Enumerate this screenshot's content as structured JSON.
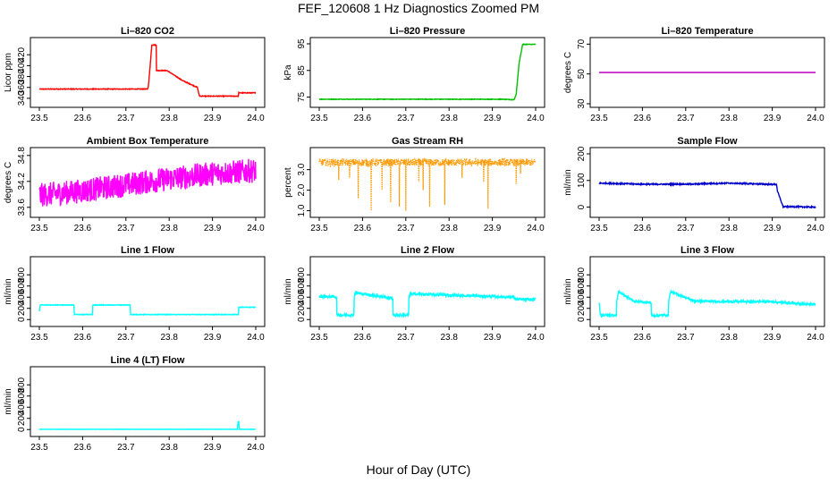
{
  "figure": {
    "title": "FEF_120608  1 Hz Diagnostics Zoomed PM",
    "xlabel": "Hour of Day (UTC)"
  },
  "chart_data": [
    {
      "type": "line",
      "title": "Li–820 CO2",
      "ylabel": "Licor ppm",
      "color": "#ff0000",
      "xlim": [
        23.5,
        24.0
      ],
      "ylim": [
        330,
        445
      ],
      "x_ticks": [
        "23.5",
        "23.6",
        "23.7",
        "23.8",
        "23.9",
        "24.0"
      ],
      "y_ticks": [
        {
          "v": 340,
          "t": "340"
        },
        {
          "v": 360,
          "t": "360"
        },
        {
          "v": 380,
          "t": "380"
        },
        {
          "v": 400,
          "t": "400"
        },
        {
          "v": 420,
          "t": "420"
        }
      ],
      "x": [
        23.5,
        23.75,
        23.752,
        23.76,
        23.77,
        23.77,
        23.795,
        23.795,
        23.83,
        23.83,
        23.865,
        23.87,
        23.96,
        23.96,
        24.0
      ],
      "y": [
        357,
        357,
        362,
        438,
        438,
        391,
        391,
        391,
        373,
        373,
        360,
        344,
        344,
        350,
        350
      ],
      "noise": 0.6
    },
    {
      "type": "line",
      "title": "Li–820 Pressure",
      "ylabel": "kPa",
      "color": "#00c000",
      "xlim": [
        23.5,
        24.0
      ],
      "ylim": [
        72.5,
        96
      ],
      "x_ticks": [
        "23.5",
        "23.6",
        "23.7",
        "23.8",
        "23.9",
        "24.0"
      ],
      "y_ticks": [
        {
          "v": 75,
          "t": "75"
        },
        {
          "v": 85,
          "t": "85"
        },
        {
          "v": 95,
          "t": "95"
        }
      ],
      "x": [
        23.5,
        23.92,
        23.95,
        23.955,
        23.962,
        23.97,
        24.0
      ],
      "y": [
        74.2,
        74.2,
        74.0,
        76,
        88,
        94.8,
        94.8
      ],
      "noise": 0.1
    },
    {
      "type": "line",
      "title": "Li–820 Temperature",
      "ylabel": "degrees C",
      "color": "#c000c0",
      "xlim": [
        23.5,
        24.0
      ],
      "ylim": [
        30,
        72
      ],
      "x_ticks": [
        "23.5",
        "23.6",
        "23.7",
        "23.8",
        "23.9",
        "24.0"
      ],
      "y_ticks": [
        {
          "v": 30,
          "t": "30"
        },
        {
          "v": 50,
          "t": "50"
        },
        {
          "v": 70,
          "t": "70"
        }
      ],
      "x": [
        23.5,
        24.0
      ],
      "y": [
        51,
        51
      ],
      "noise": 0
    },
    {
      "type": "line",
      "title": "Ambient Box Temperature",
      "ylabel": "degrees C",
      "color": "#ff00ff",
      "xlim": [
        23.5,
        24.0
      ],
      "ylim": [
        33.45,
        34.9
      ],
      "x_ticks": [
        "23.5",
        "23.6",
        "23.7",
        "23.8",
        "23.9",
        "24.0"
      ],
      "y_ticks": [
        {
          "v": 33.6,
          "t": "33.6"
        },
        {
          "v": 34.2,
          "t": "34.2"
        },
        {
          "v": 34.8,
          "t": "34.8"
        }
      ],
      "x": [
        23.5,
        23.6,
        23.7,
        23.8,
        23.9,
        24.0
      ],
      "y": [
        33.88,
        33.98,
        34.12,
        34.26,
        34.38,
        34.45
      ],
      "noise": 0.28
    },
    {
      "type": "line",
      "title": "Gas Stream RH",
      "ylabel": "percent",
      "color": "#ff9900",
      "xlim": [
        23.5,
        24.0
      ],
      "ylim": [
        0.85,
        3.9
      ],
      "x_ticks": [
        "23.5",
        "23.6",
        "23.7",
        "23.8",
        "23.9",
        "24.0"
      ],
      "y_ticks": [
        {
          "v": 1.0,
          "t": "1.0"
        },
        {
          "v": 2.0,
          "t": "2.0"
        },
        {
          "v": 3.0,
          "t": "3.0"
        }
      ],
      "x": [
        23.5,
        24.0
      ],
      "y": [
        3.35,
        3.35
      ],
      "noise": 0.18,
      "dips": [
        [
          23.545,
          2.5
        ],
        [
          23.57,
          2.6
        ],
        [
          23.59,
          1.6
        ],
        [
          23.62,
          1.0
        ],
        [
          23.645,
          2.0
        ],
        [
          23.665,
          1.4
        ],
        [
          23.685,
          1.2
        ],
        [
          23.7,
          1.0
        ],
        [
          23.73,
          2.4
        ],
        [
          23.74,
          2.0
        ],
        [
          23.755,
          1.2
        ],
        [
          23.79,
          1.3
        ],
        [
          23.83,
          2.6
        ],
        [
          23.88,
          2.4
        ],
        [
          23.89,
          1.1
        ],
        [
          23.955,
          2.3
        ],
        [
          23.965,
          2.8
        ]
      ]
    },
    {
      "type": "line",
      "title": "Sample Flow",
      "ylabel": "ml/min",
      "color": "#0000cc",
      "xlim": [
        23.5,
        24.0
      ],
      "ylim": [
        -25,
        210
      ],
      "x_ticks": [
        "23.5",
        "23.6",
        "23.7",
        "23.8",
        "23.9",
        "24.0"
      ],
      "y_ticks": [
        {
          "v": 0,
          "t": "0"
        },
        {
          "v": 100,
          "t": "100"
        },
        {
          "v": 200,
          "t": "200"
        }
      ],
      "x": [
        23.5,
        23.6,
        23.7,
        23.8,
        23.91,
        23.912,
        23.925,
        24.0
      ],
      "y": [
        90,
        86,
        86,
        90,
        85,
        60,
        2,
        0
      ],
      "noise": 2.2
    },
    {
      "type": "line",
      "title": "Line 1 Flow",
      "ylabel": "ml/min",
      "color": "#00ffff",
      "xlim": [
        23.5,
        24.0
      ],
      "ylim": [
        -60,
        1060
      ],
      "x_ticks": [
        "23.5",
        "23.6",
        "23.7",
        "23.8",
        "23.9",
        "24.0"
      ],
      "y_ticks": [
        {
          "v": 0,
          "t": "0"
        },
        {
          "v": 200,
          "t": "200"
        },
        {
          "v": 400,
          "t": "400"
        },
        {
          "v": 600,
          "t": "600"
        },
        {
          "v": 800,
          "t": "800"
        }
      ],
      "x": [
        23.5,
        23.502,
        23.58,
        23.58,
        23.623,
        23.623,
        23.71,
        23.71,
        23.96,
        23.96,
        24.0
      ],
      "y": [
        150,
        260,
        260,
        90,
        90,
        260,
        260,
        90,
        90,
        220,
        220
      ],
      "noise": 5
    },
    {
      "type": "line",
      "title": "Line 2 Flow",
      "ylabel": "ml/min",
      "color": "#00ffff",
      "xlim": [
        23.5,
        24.0
      ],
      "ylim": [
        -60,
        1060
      ],
      "x_ticks": [
        "23.5",
        "23.6",
        "23.7",
        "23.8",
        "23.9",
        "24.0"
      ],
      "y_ticks": [
        {
          "v": 0,
          "t": "0"
        },
        {
          "v": 200,
          "t": "200"
        },
        {
          "v": 400,
          "t": "400"
        },
        {
          "v": 600,
          "t": "600"
        },
        {
          "v": 800,
          "t": "800"
        }
      ],
      "x": [
        23.5,
        23.54,
        23.54,
        23.58,
        23.58,
        23.583,
        23.67,
        23.67,
        23.707,
        23.707,
        23.71,
        23.95,
        23.955,
        24.0
      ],
      "y": [
        410,
        410,
        80,
        80,
        370,
        480,
        380,
        80,
        80,
        370,
        460,
        400,
        360,
        360
      ],
      "noise": 22
    },
    {
      "type": "line",
      "title": "Line 3 Flow",
      "ylabel": "ml/min",
      "color": "#00ffff",
      "xlim": [
        23.5,
        24.0
      ],
      "ylim": [
        -60,
        1060
      ],
      "x_ticks": [
        "23.5",
        "23.6",
        "23.7",
        "23.8",
        "23.9",
        "24.0"
      ],
      "y_ticks": [
        {
          "v": 0,
          "t": "0"
        },
        {
          "v": 200,
          "t": "200"
        },
        {
          "v": 400,
          "t": "400"
        },
        {
          "v": 600,
          "t": "600"
        },
        {
          "v": 800,
          "t": "800"
        }
      ],
      "x": [
        23.5,
        23.503,
        23.54,
        23.54,
        23.545,
        23.58,
        23.62,
        23.62,
        23.623,
        23.66,
        23.66,
        23.665,
        23.72,
        23.8,
        23.9,
        23.95,
        24.0
      ],
      "y": [
        300,
        80,
        80,
        300,
        500,
        330,
        300,
        80,
        70,
        80,
        300,
        500,
        330,
        320,
        320,
        290,
        270
      ],
      "noise": 18
    },
    {
      "type": "line",
      "title": "Line 4 (LT) Flow",
      "ylabel": "ml/min",
      "color": "#00ffff",
      "xlim": [
        23.5,
        24.0
      ],
      "ylim": [
        -60,
        1060
      ],
      "x_ticks": [
        "23.5",
        "23.6",
        "23.7",
        "23.8",
        "23.9",
        "24.0"
      ],
      "y_ticks": [
        {
          "v": 0,
          "t": "0"
        },
        {
          "v": 200,
          "t": "200"
        },
        {
          "v": 400,
          "t": "400"
        },
        {
          "v": 600,
          "t": "600"
        },
        {
          "v": 800,
          "t": "800"
        }
      ],
      "x": [
        23.5,
        23.958,
        23.959,
        23.961,
        23.962,
        24.0
      ],
      "y": [
        5,
        5,
        140,
        140,
        5,
        5
      ],
      "noise": 1.5
    }
  ]
}
